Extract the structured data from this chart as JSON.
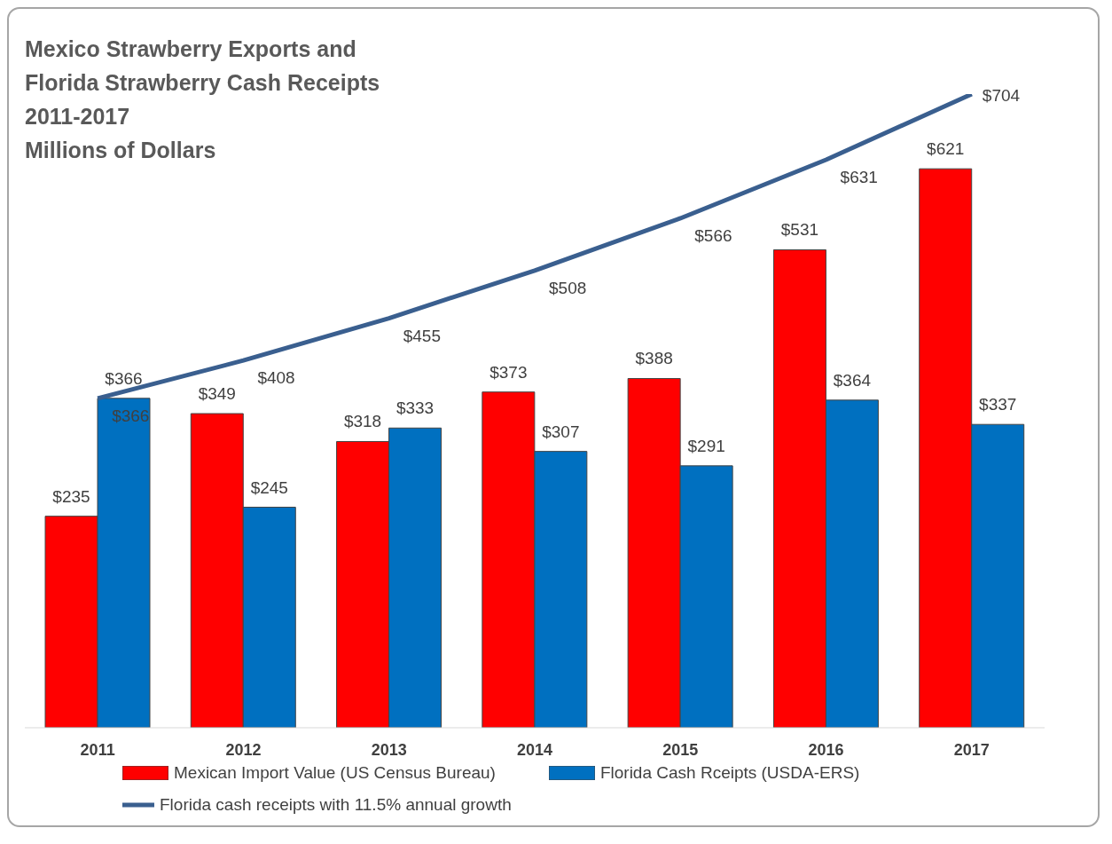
{
  "chart_data": {
    "type": "bar",
    "title": "Mexico Strawberry Exports and\nFlorida Strawberry Cash Receipts\n2011-2017\nMillions of Dollars",
    "categories": [
      "2011",
      "2012",
      "2013",
      "2014",
      "2015",
      "2016",
      "2017"
    ],
    "series": [
      {
        "name": "Mexican Import Value (US Census Bureau)",
        "color": "#ff0000",
        "values": [
          235,
          349,
          318,
          373,
          388,
          531,
          621
        ],
        "value_labels": [
          "$235",
          "$349",
          "$318",
          "$373",
          "$388",
          "$531",
          "$621"
        ]
      },
      {
        "name": "Florida Cash Rceipts (USDA-ERS)",
        "color": "#0070c0",
        "values": [
          366,
          245,
          333,
          307,
          291,
          364,
          337
        ],
        "value_labels": [
          "$366",
          "$245",
          "$333",
          "$307",
          "$291",
          "$364",
          "$337"
        ]
      },
      {
        "name": "Florida cash receipts with 11.5% annual growth",
        "type": "line",
        "color": "#3a5f8f",
        "marker": "none",
        "values": [
          366,
          408,
          455,
          508,
          566,
          631,
          704
        ],
        "value_labels": [
          "$366",
          "$408",
          "$455",
          "$508",
          "$566",
          "$631",
          "$704"
        ]
      }
    ],
    "legend": "bottom",
    "grid": false
  }
}
